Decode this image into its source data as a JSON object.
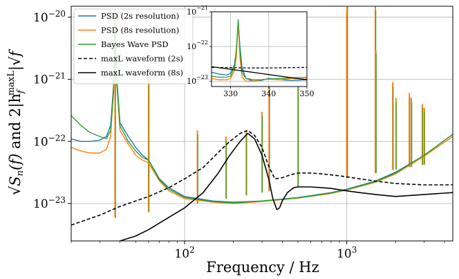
{
  "chart_data": [
    {
      "type": "line",
      "title": "",
      "xlabel": "Frequency / Hz",
      "ylabel_parts": {
        "a": "√",
        "b": "S",
        "c": "n",
        "d": "(f)",
        "e": " and 2|h",
        "f": "f",
        "g": "maxL",
        "h": "|√",
        "i": "f"
      },
      "xscale": "log",
      "yscale": "log",
      "xlim": [
        20,
        4500
      ],
      "ylim": [
        2.5e-24,
        1.5e-20
      ],
      "grid": true,
      "legend_position": "top-left",
      "x_ticks": [
        {
          "value": 100,
          "base": "10",
          "exp": "2"
        },
        {
          "value": 1000,
          "base": "10",
          "exp": "3"
        }
      ],
      "y_ticks": [
        {
          "value": 1e-20,
          "base": "10",
          "exp": "−20"
        },
        {
          "value": 1e-21,
          "base": "10",
          "exp": "−21"
        },
        {
          "value": 1e-22,
          "base": "10",
          "exp": "−22"
        },
        {
          "value": 1e-23,
          "base": "10",
          "exp": "−23"
        }
      ],
      "series": [
        {
          "name": "PSD (2s resolution)",
          "color": "#1f77b4",
          "style": "solid",
          "x": [
            20,
            23,
            26,
            30,
            33,
            35,
            36.5,
            37.3,
            38,
            40,
            45,
            50,
            55,
            60,
            65,
            70,
            80,
            100,
            150,
            200,
            300,
            500,
            800,
            1000,
            1500,
            2000,
            3000,
            4500
          ],
          "y": [
            1.1e-22,
            1e-22,
            1e-22,
            1.05e-22,
            1.2e-22,
            1.8e-22,
            8e-22,
            1e-20,
            1.3e-21,
            2e-22,
            1.2e-22,
            8e-23,
            6e-23,
            5e-23,
            3.5e-23,
            2.5e-23,
            1.8e-23,
            1.3e-23,
            1.1e-23,
            1.05e-23,
            1.1e-23,
            1.25e-23,
            1.5e-23,
            1.7e-23,
            2.3e-23,
            3.2e-23,
            6e-23,
            1.3e-22
          ]
        },
        {
          "name": "PSD (8s resolution)",
          "color": "#ff7f0e",
          "style": "solid",
          "x": [
            20,
            23,
            26,
            30,
            33,
            35,
            36.5,
            37.3,
            38,
            40,
            45,
            50,
            55,
            60,
            65,
            70,
            80,
            100,
            150,
            200,
            300,
            500,
            800,
            1000,
            1500,
            2000,
            3000,
            4500
          ],
          "y": [
            8e-23,
            7e-23,
            6.5e-23,
            6.5e-23,
            7.5e-23,
            1.2e-22,
            7e-22,
            1.2e-20,
            1e-21,
            1.5e-22,
            9e-23,
            6e-23,
            5e-23,
            4.5e-23,
            3.2e-23,
            2.3e-23,
            1.6e-23,
            1.2e-23,
            1.05e-23,
            1e-23,
            1.08e-23,
            1.22e-23,
            1.45e-23,
            1.65e-23,
            2.2e-23,
            3e-23,
            5.8e-23,
            1.2e-22
          ]
        },
        {
          "name": "Bayes Wave PSD",
          "color": "#2ca02c",
          "style": "solid",
          "x": [
            20,
            23,
            26,
            30,
            33,
            35,
            36.5,
            37.3,
            38,
            40,
            45,
            50,
            55,
            60,
            65,
            70,
            80,
            100,
            150,
            200,
            300,
            500,
            800,
            1000,
            1500,
            2000,
            3000,
            4500
          ],
          "y": [
            2.6e-22,
            1.8e-22,
            1.4e-22,
            1.2e-22,
            1.1e-22,
            1.5e-22,
            6e-22,
            1.2e-20,
            1.1e-21,
            1.8e-22,
            1e-22,
            7e-23,
            5.5e-23,
            5e-23,
            3.4e-23,
            2.4e-23,
            1.7e-23,
            1.25e-23,
            1.08e-23,
            1.02e-23,
            1.1e-23,
            1.23e-23,
            1.48e-23,
            1.68e-23,
            2.25e-23,
            3.1e-23,
            6e-23,
            1.3e-22
          ]
        },
        {
          "name": "maxL waveform (2s)",
          "color": "#000000",
          "style": "dashed",
          "x": [
            20,
            30,
            40,
            50,
            60,
            80,
            100,
            130,
            160,
            190,
            220,
            245,
            270,
            300,
            330,
            360,
            400,
            450,
            500,
            600,
            700,
            900,
            1200,
            1500,
            2000,
            3000,
            4500
          ],
          "y": [
            4.5e-24,
            6.5e-24,
            9e-24,
            1.1e-23,
            1.3e-23,
            1.8e-23,
            2.5e-23,
            3.8e-23,
            6.5e-23,
            1e-22,
            1.35e-22,
            1.5e-22,
            1.25e-22,
            8e-23,
            4e-23,
            2.5e-23,
            2.6e-23,
            2.9e-23,
            3.1e-23,
            3.1e-23,
            3e-23,
            2.8e-23,
            2.5e-23,
            2.3e-23,
            2.1e-23,
            2e-23,
            2e-23
          ]
        },
        {
          "name": "maxL waveform (8s)",
          "color": "#000000",
          "style": "solid",
          "x": [
            40,
            50,
            60,
            80,
            100,
            130,
            160,
            190,
            220,
            245,
            270,
            300,
            330,
            350,
            370,
            385,
            400,
            430,
            470,
            500,
            600,
            700,
            800,
            1000,
            1200,
            1500,
            2000,
            3000,
            4500
          ],
          "y": [
            2.5e-24,
            3e-24,
            3.8e-24,
            6e-24,
            8.5e-24,
            1.5e-23,
            3e-23,
            6e-23,
            1e-22,
            1.35e-22,
            1.1e-22,
            6e-23,
            2.5e-23,
            1.2e-23,
            8e-24,
            8.5e-24,
            1.1e-23,
            1.5e-23,
            1.8e-23,
            1.85e-23,
            1.85e-23,
            1.8e-23,
            1.75e-23,
            1.6e-23,
            1.5e-23,
            1.4e-23,
            1.3e-23,
            1.4e-23,
            1.5e-23
          ]
        }
      ],
      "spikes": {
        "x": [
          37.3,
          60,
          120,
          180,
          240,
          300,
          331.9,
          500,
          999,
          1004,
          1500,
          1510,
          1920,
          2010,
          2430,
          2500,
          2920,
          3000
        ],
        "top": [
          1.2e-20,
          1.1e-21,
          1.5e-22,
          1.2e-22,
          1.5e-22,
          3e-22,
          1e-21,
          1.5e-21,
          1.2e-20,
          2e-20,
          1.5e-20,
          3e-21,
          9e-22,
          5e-22,
          6e-22,
          5e-22,
          4e-22,
          3.5e-22
        ]
      }
    },
    {
      "type": "line",
      "title": "",
      "xscale": "linear",
      "yscale": "log",
      "xlim": [
        325,
        350
      ],
      "ylim": [
        7e-24,
        1e-21
      ],
      "grid": true,
      "x_ticks": [
        {
          "value": 330,
          "label": "330"
        },
        {
          "value": 340,
          "label": "340"
        },
        {
          "value": 350,
          "label": "350"
        }
      ],
      "y_ticks": [
        {
          "value": 1e-21,
          "base": "10",
          "exp": "−21"
        },
        {
          "value": 1e-22,
          "base": "10",
          "exp": "−22"
        },
        {
          "value": 1e-23,
          "base": "10",
          "exp": "−23"
        }
      ],
      "series": [
        {
          "name": "PSD (2s resolution)",
          "color": "#1f77b4",
          "style": "solid",
          "x": [
            325,
            327,
            329,
            330,
            331,
            331.5,
            332,
            332.5,
            333,
            334,
            336,
            338,
            340,
            343,
            346,
            350
          ],
          "y": [
            1.8e-23,
            1.6e-23,
            1.5e-23,
            1.7e-23,
            3e-23,
            8e-23,
            4e-22,
            9e-23,
            2.5e-23,
            1.2e-23,
            1e-23,
            1.05e-23,
            1.2e-23,
            1.1e-23,
            1.05e-23,
            1.1e-23
          ]
        },
        {
          "name": "PSD (8s resolution)",
          "color": "#ff7f0e",
          "style": "solid",
          "x": [
            325,
            327,
            329,
            330,
            331,
            331.5,
            332,
            332.5,
            333,
            334,
            336,
            338,
            340,
            343,
            346,
            350
          ],
          "y": [
            1.2e-23,
            1.1e-23,
            1.1e-23,
            1.2e-23,
            2e-23,
            5e-23,
            5e-22,
            4e-23,
            1.3e-23,
            1e-23,
            1e-23,
            1.1e-23,
            1.15e-23,
            1.1e-23,
            1.2e-23,
            1.15e-23
          ]
        },
        {
          "name": "Bayes Wave PSD",
          "color": "#2ca02c",
          "style": "solid",
          "x": [
            325,
            327,
            329,
            330,
            331,
            331.5,
            332,
            332.5,
            333,
            334,
            336,
            338,
            340,
            343,
            346,
            350
          ],
          "y": [
            1.4e-23,
            1.3e-23,
            1.3e-23,
            1.4e-23,
            2.5e-23,
            8e-23,
            6e-22,
            7e-23,
            1.8e-23,
            1.2e-23,
            1.1e-23,
            1.1e-23,
            1.15e-23,
            1.2e-23,
            1.25e-23,
            1.3e-23
          ]
        },
        {
          "name": "maxL waveform (2s)",
          "color": "#000000",
          "style": "dashed",
          "x": [
            325,
            330,
            335,
            340,
            345,
            350
          ],
          "y": [
            2.5e-23,
            2.45e-23,
            2.4e-23,
            2.4e-23,
            2.45e-23,
            2.5e-23
          ]
        },
        {
          "name": "maxL waveform (8s)",
          "color": "#000000",
          "style": "solid",
          "x": [
            325,
            330,
            335,
            340,
            345,
            350
          ],
          "y": [
            2.6e-23,
            2.2e-23,
            1.85e-23,
            1.55e-23,
            1.3e-23,
            1.1e-23
          ]
        }
      ]
    }
  ]
}
